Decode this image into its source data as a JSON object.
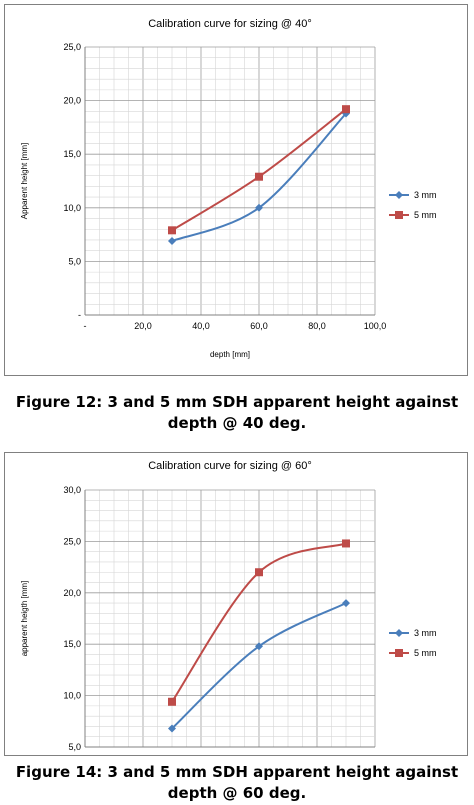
{
  "chart_data": [
    {
      "type": "line",
      "title": "Calibration curve for sizing @ 40°",
      "xlabel": "depth [mm]",
      "ylabel": "Apparent height [mm]",
      "xlim": [
        0,
        100
      ],
      "ylim": [
        0,
        25
      ],
      "x_ticks": [
        "-",
        "20,0",
        "40,0",
        "60,0",
        "80,0",
        "100,0"
      ],
      "y_ticks": [
        "-",
        "5,0",
        "10,0",
        "15,0",
        "20,0",
        "25,0"
      ],
      "grid": true,
      "legend": "right",
      "series": [
        {
          "name": "3 mm",
          "color": "#4a7ebb",
          "marker": "diamond",
          "x": [
            30,
            60,
            90
          ],
          "y": [
            6.9,
            10.0,
            18.8
          ]
        },
        {
          "name": "5 mm",
          "color": "#be4b48",
          "marker": "square",
          "x": [
            30,
            60,
            90
          ],
          "y": [
            7.9,
            12.9,
            19.2
          ]
        }
      ]
    },
    {
      "type": "line",
      "title": "Calibration curve for sizing @ 60°",
      "xlabel": "",
      "ylabel": "apparent heigth [mm]",
      "xlim": [
        0,
        100
      ],
      "ylim": [
        5,
        30
      ],
      "y_ticks": [
        "5,0",
        "10,0",
        "15,0",
        "20,0",
        "25,0",
        "30,0"
      ],
      "grid": true,
      "legend": "right",
      "series": [
        {
          "name": "3 mm",
          "color": "#4a7ebb",
          "marker": "diamond",
          "x": [
            30,
            60,
            90
          ],
          "y": [
            6.8,
            14.8,
            19.0
          ]
        },
        {
          "name": "5 mm",
          "color": "#be4b48",
          "marker": "square",
          "x": [
            30,
            60,
            90
          ],
          "y": [
            9.4,
            22.0,
            24.8
          ]
        }
      ]
    }
  ],
  "captions": {
    "fig12": "Figure 12: 3 and 5  mm SDH apparent height against depth @ 40 deg.",
    "fig14": "Figure 14: 3 and 5 mm SDH apparent height against depth @ 60 deg."
  }
}
